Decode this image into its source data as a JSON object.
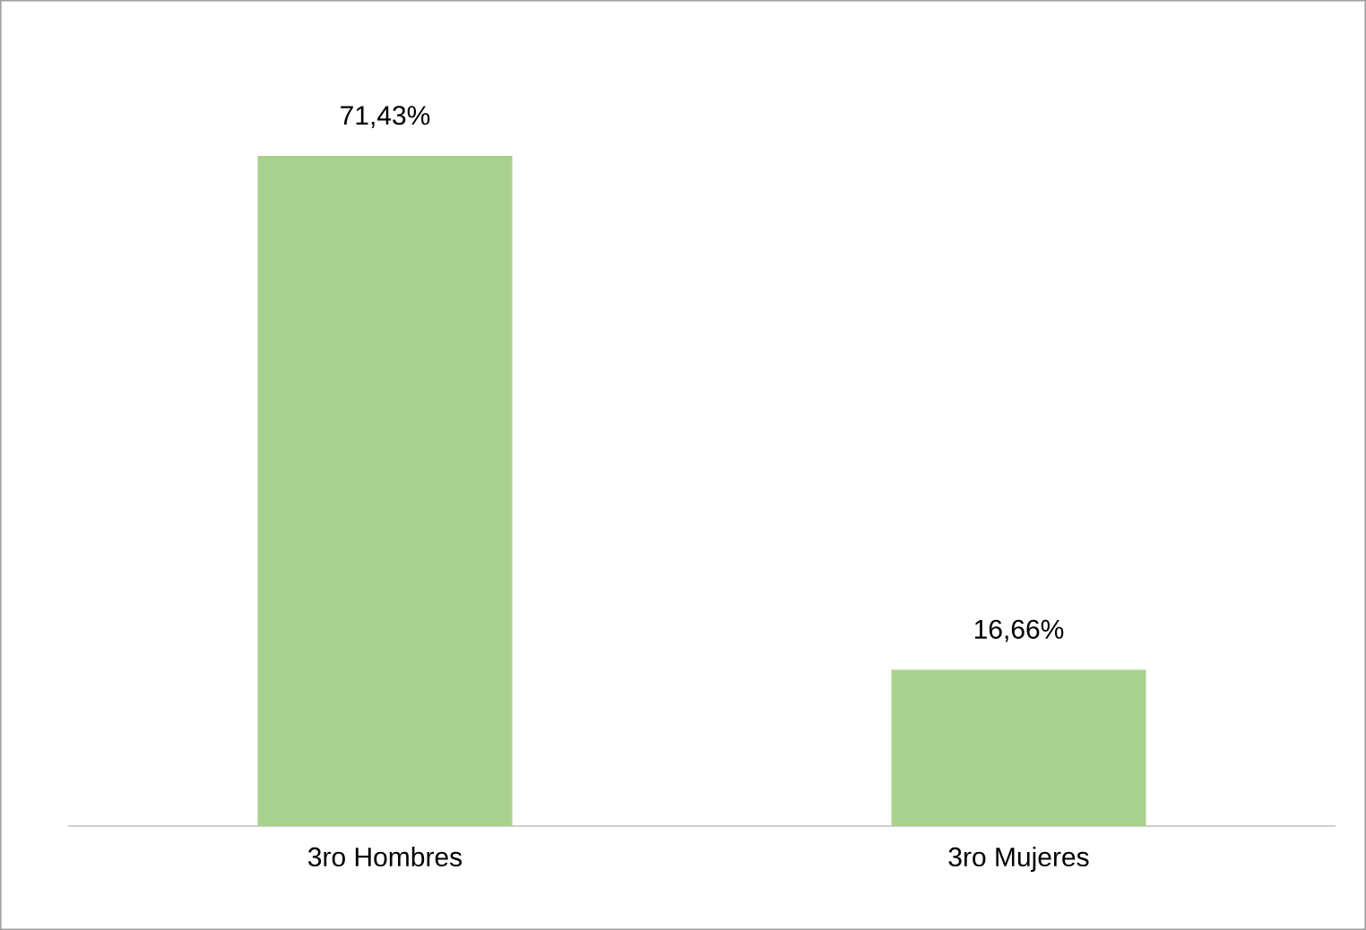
{
  "chart_data": {
    "type": "bar",
    "categories": [
      "3ro Hombres",
      "3ro Mujeres"
    ],
    "values": [
      71.43,
      16.66
    ],
    "value_labels": [
      "71,43%",
      "16,66%"
    ],
    "color": "#a9d18e",
    "tick_labels": "x"
  }
}
